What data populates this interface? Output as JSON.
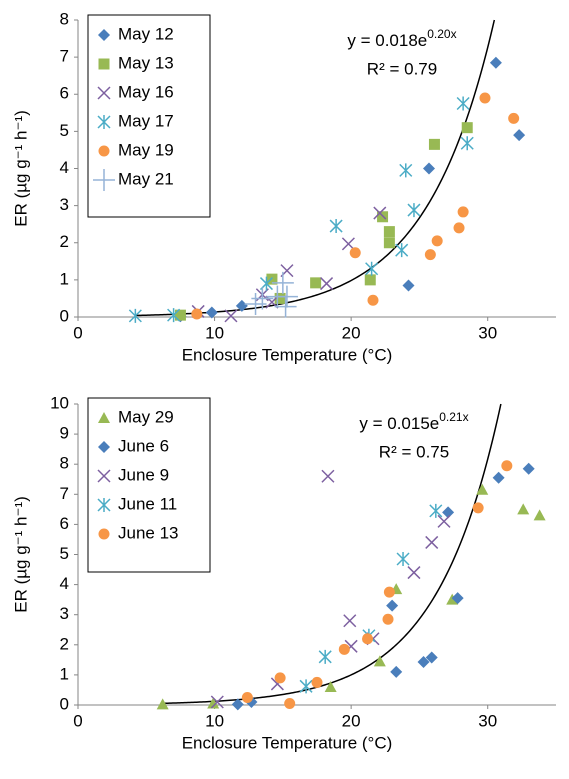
{
  "chart_data": [
    {
      "type": "scatter",
      "x_label": "Enclosure Temperature (°C)",
      "y_label": "ER (µg g⁻¹ h⁻¹)",
      "xlim": [
        0,
        35
      ],
      "xticks": [
        0,
        10,
        20,
        30
      ],
      "ylim": [
        0,
        8
      ],
      "yticks": [
        0,
        1,
        2,
        3,
        4,
        5,
        6,
        7,
        8
      ],
      "grid": false,
      "legend": "top-left",
      "trendline": {
        "equation_base": "y = 0.018e",
        "equation_exponent": "0.20x",
        "r2": "R² = 0.79",
        "a": 0.018,
        "b": 0.2
      },
      "series": [
        {
          "name": "May 12",
          "color": "#4a7ebb",
          "marker": "diamond",
          "x": [
            7.5,
            9.8,
            12.0,
            24.2,
            25.7,
            30.6,
            32.3
          ],
          "values": [
            0.02,
            0.12,
            0.3,
            0.85,
            4.0,
            6.85,
            4.9
          ]
        },
        {
          "name": "May 13",
          "color": "#98b954",
          "marker": "square",
          "x": [
            7.5,
            14.2,
            14.8,
            17.4,
            21.4,
            22.3,
            22.8,
            22.8,
            26.1,
            28.5
          ],
          "values": [
            0.05,
            1.02,
            0.5,
            0.92,
            1.0,
            2.7,
            2.0,
            2.3,
            4.65,
            5.1
          ]
        },
        {
          "name": "May 16",
          "color": "#7d60a0",
          "marker": "x",
          "x": [
            8.8,
            11.2,
            13.5,
            14.2,
            15.3,
            18.2,
            19.8,
            22.1
          ],
          "values": [
            0.15,
            0.03,
            0.6,
            0.4,
            1.25,
            0.9,
            1.97,
            2.8
          ]
        },
        {
          "name": "May 17",
          "color": "#4bacc6",
          "marker": "asterisk",
          "x": [
            4.2,
            7.0,
            13.8,
            18.9,
            21.5,
            23.7,
            24.0,
            24.6,
            28.2,
            28.5
          ],
          "values": [
            0.03,
            0.05,
            0.9,
            2.45,
            1.3,
            1.8,
            3.95,
            2.88,
            5.75,
            4.68
          ]
        },
        {
          "name": "May 19",
          "color": "#f79646",
          "marker": "circle",
          "x": [
            8.7,
            20.3,
            21.6,
            25.8,
            26.3,
            27.9,
            28.2,
            29.8,
            31.9
          ],
          "values": [
            0.08,
            1.73,
            0.45,
            1.68,
            2.05,
            2.4,
            2.83,
            5.9,
            5.35
          ]
        },
        {
          "name": "May 21",
          "color": "#95b3d7",
          "marker": "plus",
          "x": [
            13.0,
            13.5,
            14.6,
            15.0,
            15.3,
            15.2
          ],
          "values": [
            0.35,
            0.5,
            0.55,
            0.92,
            0.55,
            0.28
          ]
        }
      ]
    },
    {
      "type": "scatter",
      "x_label": "Enclosure Temperature (°C)",
      "y_label": "ER (µg g⁻¹ h⁻¹)",
      "xlim": [
        0,
        35
      ],
      "xticks": [
        0,
        10,
        20,
        30
      ],
      "ylim": [
        0,
        10
      ],
      "yticks": [
        0,
        1,
        2,
        3,
        4,
        5,
        6,
        7,
        8,
        9,
        10
      ],
      "grid": false,
      "legend": "top-left",
      "trendline": {
        "equation_base": "y = 0.015e",
        "equation_exponent": "0.21x",
        "r2": "R² = 0.75",
        "a": 0.015,
        "b": 0.21
      },
      "series": [
        {
          "name": "May 29",
          "color": "#98b954",
          "marker": "triangle",
          "x": [
            6.2,
            9.9,
            18.5,
            22.1,
            23.3,
            27.4,
            29.6,
            32.6,
            33.8
          ],
          "values": [
            0.02,
            0.05,
            0.6,
            1.45,
            3.85,
            3.5,
            7.15,
            6.5,
            6.3
          ]
        },
        {
          "name": "June 6",
          "color": "#4a7ebb",
          "marker": "diamond",
          "x": [
            11.7,
            12.7,
            23.0,
            23.3,
            25.3,
            25.9,
            27.1,
            27.8,
            30.8,
            33.0
          ],
          "values": [
            0.02,
            0.1,
            3.3,
            1.1,
            1.43,
            1.58,
            6.4,
            3.55,
            7.55,
            7.85
          ]
        },
        {
          "name": "June 9",
          "color": "#7d60a0",
          "marker": "x",
          "x": [
            10.2,
            14.6,
            18.3,
            19.9,
            20.0,
            21.6,
            24.6,
            25.9,
            26.8
          ],
          "values": [
            0.1,
            0.7,
            7.6,
            2.8,
            1.95,
            2.2,
            4.4,
            5.4,
            6.1
          ]
        },
        {
          "name": "June 11",
          "color": "#4bacc6",
          "marker": "asterisk",
          "x": [
            16.7,
            18.1,
            21.3,
            23.8,
            26.2
          ],
          "values": [
            0.62,
            1.6,
            2.3,
            4.85,
            6.45
          ]
        },
        {
          "name": "June 13",
          "color": "#f79646",
          "marker": "circle",
          "x": [
            12.4,
            14.8,
            15.5,
            17.5,
            19.5,
            21.2,
            22.7,
            22.8,
            29.3,
            31.4
          ],
          "values": [
            0.25,
            0.9,
            0.05,
            0.75,
            1.85,
            2.2,
            2.85,
            3.75,
            6.55,
            7.95
          ]
        }
      ]
    }
  ]
}
